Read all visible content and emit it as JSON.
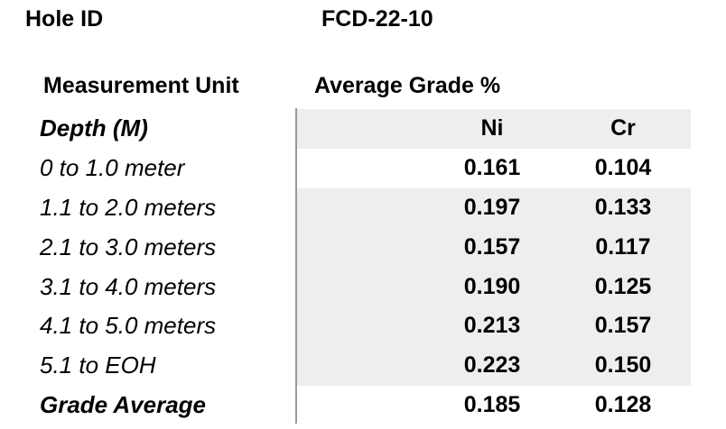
{
  "header": {
    "hole_id_label": "Hole ID",
    "hole_id_value": "FCD-22-10",
    "measurement_unit_label": "Measurement Unit",
    "average_grade_label": "Average Grade %"
  },
  "table": {
    "columns": [
      "Depth (M)",
      "Ni",
      "Cr"
    ],
    "rows": [
      {
        "depth": "0 to 1.0 meter",
        "ni": "0.161",
        "cr": "0.104"
      },
      {
        "depth": "1.1 to 2.0 meters",
        "ni": "0.197",
        "cr": "0.133"
      },
      {
        "depth": "2.1 to 3.0 meters",
        "ni": "0.157",
        "cr": "0.117"
      },
      {
        "depth": "3.1 to 4.0 meters",
        "ni": "0.190",
        "cr": "0.125"
      },
      {
        "depth": "4.1 to 5.0 meters",
        "ni": "0.213",
        "cr": "0.157"
      },
      {
        "depth": "5.1 to EOH",
        "ni": "0.223",
        "cr": "0.150"
      }
    ],
    "average_row": {
      "depth": "Grade Average",
      "ni": "0.185",
      "cr": "0.128"
    }
  },
  "colors": {
    "row_shade": "#eeeeee",
    "divider": "#9a9a9a",
    "text": "#000000"
  }
}
